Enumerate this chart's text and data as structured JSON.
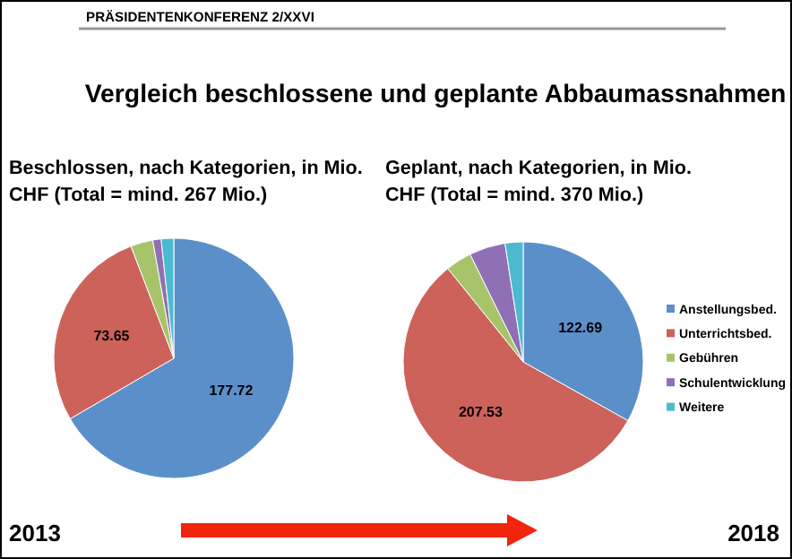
{
  "chart_data": [
    {
      "type": "pie",
      "title": "Beschlossen, nach Kategorien, in Mio. CHF (Total = mind. 267 Mio.)",
      "categories": [
        null,
        null,
        null,
        null,
        null
      ],
      "values": [
        177.72,
        73.65,
        8,
        3,
        4.5
      ],
      "value_labels": [
        "177.72",
        "73.65",
        null,
        null,
        null
      ],
      "colors": [
        "#5b8fc9",
        "#cd625a",
        "#a7c46a",
        "#8f6fb5",
        "#4bbad1"
      ],
      "annotations": [
        "PRÄSIDENTENKONFERENZ 2/XXVI",
        "Vergleich beschlossene und geplante Abbaumassnahmen",
        "2013"
      ]
    },
    {
      "type": "pie",
      "title": "Geplant, nach Kategorien, in Mio. CHF (Total = mind. 370 Mio.)",
      "categories": [
        "Anstellungsbed.",
        "Unterrichtsbed.",
        "Gebühren",
        "Schulentwicklung",
        "Weitere"
      ],
      "values": [
        122.69,
        207.53,
        13,
        18,
        9
      ],
      "value_labels": [
        "122.69",
        "207.53",
        null,
        null,
        null
      ],
      "colors": [
        "#5b8fc9",
        "#cd625a",
        "#a7c46a",
        "#8f6fb5",
        "#4bbad1"
      ],
      "legend": "right",
      "annotations": [
        "2018"
      ]
    }
  ]
}
